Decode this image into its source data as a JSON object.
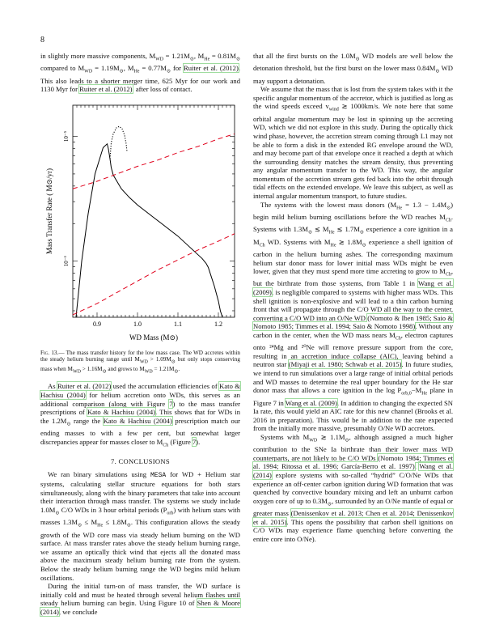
{
  "page": {
    "number": "8"
  },
  "left": {
    "intro_paragraph": [
      {
        "t": "in slightly more massive components, M"
      },
      {
        "t": "WD",
        "sub": true
      },
      {
        "t": " = 1.21M"
      },
      {
        "t": "⊙",
        "sub": true
      },
      {
        "t": ", M"
      },
      {
        "t": "He",
        "sub": true
      },
      {
        "t": " = 0.81M"
      },
      {
        "t": "⊙",
        "sub": true
      },
      {
        "t": " compared to M"
      },
      {
        "t": "WD",
        "sub": true
      },
      {
        "t": " = 1.19M"
      },
      {
        "t": "⊙",
        "sub": true
      },
      {
        "t": ", M"
      },
      {
        "t": "He",
        "sub": true
      },
      {
        "t": " = 0.77M"
      },
      {
        "t": "⊙",
        "sub": true
      },
      {
        "t": " for "
      },
      {
        "t": "Ruiter et al. (2012)",
        "cite": true
      },
      {
        "t": ". This also leads to a shorter merger time, 625 Myr for our work and 1130 Myr for "
      },
      {
        "t": "Ruiter et al. (2012)",
        "cite": true
      },
      {
        "t": ", after loss of contact."
      }
    ],
    "caption": [
      {
        "t": "Fig. 13.",
        "lbl": true
      },
      {
        "t": "— The mass transfer history for the low mass case. The WD accretes within the steady helium burning range until M"
      },
      {
        "t": "WD",
        "sub": true
      },
      {
        "t": " > 1.09M"
      },
      {
        "t": "⊙",
        "sub": true
      },
      {
        "t": " but only stops conserving mass when M"
      },
      {
        "t": "WD",
        "sub": true
      },
      {
        "t": " > 1.16M"
      },
      {
        "t": "⊙",
        "sub": true
      },
      {
        "t": " and grows to M"
      },
      {
        "t": "WD",
        "sub": true
      },
      {
        "t": " = 1.21M"
      },
      {
        "t": "⊙",
        "sub": true
      },
      {
        "t": "."
      }
    ],
    "para2": [
      {
        "t": "As "
      },
      {
        "t": "Ruiter et al. (2012)",
        "cite": true
      },
      {
        "t": " used the accumulation efficiencies of "
      },
      {
        "t": "Kato & Hachisu (2004)",
        "cite": true
      },
      {
        "t": " for helium accretion onto WDs, this serves as an additional comparison (along with Figure "
      },
      {
        "t": "7",
        "cite": true
      },
      {
        "t": ") to the mass transfer prescriptions of "
      },
      {
        "t": "Kato & Hachisu (2004)",
        "cite": true
      },
      {
        "t": ". This shows that for WDs in the 1.2M"
      },
      {
        "t": "⊙",
        "sub": true
      },
      {
        "t": " range the "
      },
      {
        "t": "Kato & Hachisu (2004)",
        "cite": true
      },
      {
        "t": " prescription match our ending masses to with a few per cent, but somewhat larger discrepancies appear for masses closer to M"
      },
      {
        "t": "Ch",
        "sub": true
      },
      {
        "t": " (Figure "
      },
      {
        "t": "7",
        "cite": true
      },
      {
        "t": ")."
      }
    ],
    "section_title": "7. CONCLUSIONS",
    "para3": [
      {
        "t": "We ran binary simulations using "
      },
      {
        "t": "MESA",
        "mono": true
      },
      {
        "t": " for WD + Helium star systems, calculating stellar structure equations for both stars simultaneously, along with the binary parameters that take into account their interaction through mass transfer. The systems we study include 1.0M"
      },
      {
        "t": "⊙",
        "sub": true
      },
      {
        "t": " C/O WDs in 3 hour orbital periods (P"
      },
      {
        "t": "orb",
        "sub": true
      },
      {
        "t": ") with helium stars with masses 1.3M"
      },
      {
        "t": "⊙",
        "sub": true
      },
      {
        "t": " ≤ M"
      },
      {
        "t": "He",
        "sub": true
      },
      {
        "t": " ≤ 1.8M"
      },
      {
        "t": "⊙",
        "sub": true
      },
      {
        "t": ". This configuration allows the steady growth of the WD core mass via steady helium burning on the WD surface. At mass transfer rates above the steady helium burning range, we assume an optically thick wind that ejects all the donated mass above the maximum steady helium burning rate from the system. Below the steady helium burning range the WD begins mild helium oscillations."
      }
    ],
    "para4": [
      {
        "t": "During the initial turn-on of mass transfer, the WD surface is initially cold and must be heated through several helium flashes until steady helium burning can begin. Using Figure 10 of "
      },
      {
        "t": "Shen & Moore (2014)",
        "cite": true
      },
      {
        "t": ", we conclude"
      }
    ]
  },
  "right": {
    "para1": [
      {
        "t": "that all the first bursts on the 1.0M"
      },
      {
        "t": "⊙",
        "sub": true
      },
      {
        "t": " WD models are well below the detonation threshold, but the first burst on the lower mass 0.84M"
      },
      {
        "t": "⊙",
        "sub": true
      },
      {
        "t": " WD may support a detonation."
      }
    ],
    "para2": [
      {
        "t": "We assume that the mass that is lost from the system takes with it the specific angular momentum of the accretor, which is justified as long as the wind speeds exceed v"
      },
      {
        "t": "wind",
        "sub": true
      },
      {
        "t": " ≳ 1000km/s. We note here that some orbital angular momentum may be lost in spinning up the accreting WD, which we did not explore in this study. During the optically thick wind phase, however, the accretion stream coming through L1 may not be able to form a disk in the extended RG envelope around the WD, and may become part of that envelope once it reached a depth at which the surrounding density matches the stream density, thus preventing any angular momentum transfer to the WD. This way, the angular momentum of the accretion stream gets fed back into the orbit through tidal effects on the extended envelope. We leave this subject, as well as internal angular momentum transport, to future studies."
      }
    ],
    "para3": [
      {
        "t": "The systems with the lowest mass donors (M"
      },
      {
        "t": "He",
        "sub": true
      },
      {
        "t": " = 1.3 − 1.4M"
      },
      {
        "t": "⊙",
        "sub": true
      },
      {
        "t": ") begin mild helium burning oscillations before the WD reaches M"
      },
      {
        "t": "Ch",
        "sub": true
      },
      {
        "t": ". Systems with 1.3M"
      },
      {
        "t": "⊙",
        "sub": true
      },
      {
        "t": " ≲ M"
      },
      {
        "t": "He",
        "sub": true
      },
      {
        "t": " ≲ 1.7M"
      },
      {
        "t": "⊙",
        "sub": true
      },
      {
        "t": " experience a core ignition in a M"
      },
      {
        "t": "Ch",
        "sub": true
      },
      {
        "t": " WD. Systems with M"
      },
      {
        "t": "He",
        "sub": true
      },
      {
        "t": " ≳ 1.8M"
      },
      {
        "t": "⊙",
        "sub": true
      },
      {
        "t": " experience a shell ignition of carbon in the helium burning ashes. The corresponding maximum helium star donor mass for lower initial mass WDs might be even lower, given that they must spend more time accreting to grow to M"
      },
      {
        "t": "Ch",
        "sub": true
      },
      {
        "t": ", but the birthrate from those systems, from Table 1 in "
      },
      {
        "t": "Wang et al. (2009)",
        "cite": true
      },
      {
        "t": ", is negligible compared to systems with higher mass WDs. This shell ignition is non-explosive and will lead to a thin carbon burning front that will propagate through the C/O WD all the way to the center, converting a C/O WD into an O/Ne WD "
      },
      {
        "t": "(Nomoto & Iben 1985; Saio & Nomoto 1985; Timmes et al. 1994; Saio & Nomoto 1998)",
        "cite": true
      },
      {
        "t": ". Without any carbon in the center, when the WD mass nears M"
      },
      {
        "t": "Ch",
        "sub": true
      },
      {
        "t": ", electron captures onto ²⁴Mg and ²⁰Ne will remove pressure support from the core, resulting in an accretion induce collapse (AIC), leaving behind a neutron star "
      },
      {
        "t": "(Miyaji et al. 1980; Schwab et al. 2015)",
        "cite": true
      },
      {
        "t": ". In future studies, we intend to run simulations over a large range of initial orbital periods and WD masses to determine the real upper boundary for the He star donor mass that allows a core ignition in the log P"
      },
      {
        "t": "orb,0",
        "sub": true
      },
      {
        "t": "−M"
      },
      {
        "t": "He",
        "sub": true
      },
      {
        "t": " plane in Figure 7 in "
      },
      {
        "t": "Wang et al. (2009)",
        "cite": true
      },
      {
        "t": ". In addition to changing the expected SN Ia rate, this would yield an AIC rate for this new channel (Brooks et al. 2016 in preparation). This would be in addition to the rate expected from the initially more massive, presumably O/Ne WD accretors."
      }
    ],
    "para4": [
      {
        "t": "Systems with M"
      },
      {
        "t": "WD",
        "sub": true
      },
      {
        "t": " ≳ 1.1M"
      },
      {
        "t": "⊙",
        "sub": true
      },
      {
        "t": ", although assigned a much higher contribution to the SNe Ia birthrate than their lower mass WD counterparts, are not likely to be C/O WDs "
      },
      {
        "t": "(Nomoto 1984; Timmes et al. 1994; Ritossa et al. 1996; García-Berro et al. 1997)",
        "cite": true
      },
      {
        "t": ". "
      },
      {
        "t": "Wang et al. (2014)",
        "cite": true
      },
      {
        "t": " explore systems with so-called “hydrid” C/O/Ne WDs that experience an off-center carbon ignition during WD formation that was quenched by convective boundary mixing and left an unburnt carbon oxygen core of up to 0.3M"
      },
      {
        "t": "⊙",
        "sub": true
      },
      {
        "t": ", surrounded by an O/Ne mantle of equal or greater mass "
      },
      {
        "t": "(Denissenkov et al. 2013; Chen et al. 2014; Denissenkov et al. 2015)",
        "cite": true
      },
      {
        "t": ". This opens the possibility that carbon shell ignitions on C/O WDs may experience flame quenching before converting the entire core into O/Ne)."
      }
    ]
  },
  "figure": {
    "ylabel": "Mass Transfer Rate ( M⊙/yr)",
    "xlabel": "WD Mass (M⊙)",
    "ytick_labels": [
      "10⁻⁵",
      "10⁻⁶"
    ]
  },
  "chart_data": {
    "type": "line",
    "xlabel": "WD Mass (M⊙)",
    "ylabel": "Mass Transfer Rate ( M⊙/yr)",
    "xlim": [
      0.84,
      1.24
    ],
    "ylim_log10": [
      -6.45,
      -4.75
    ],
    "log_y": true,
    "x_ticks": [
      0.9,
      1.0,
      1.1,
      1.2
    ],
    "x_tick_labels": [
      "0.9",
      "1.0",
      "1.1",
      "1.2"
    ],
    "y_ticks_log10": [
      -5,
      -6
    ],
    "grid": false,
    "series": [
      {
        "style": "solid-black",
        "x": [
          0.848,
          0.862,
          0.878,
          0.895,
          0.915,
          0.925,
          0.928,
          0.932,
          0.935,
          0.94,
          0.96,
          0.98,
          1.0,
          1.02,
          1.04,
          1.06,
          1.08,
          1.1,
          1.12,
          1.14,
          1.16,
          1.17,
          1.175,
          1.18,
          1.19,
          1.2,
          1.205,
          1.21
        ],
        "log10y": [
          -6.45,
          -6.0,
          -5.62,
          -5.3,
          -5.09,
          -5.06,
          -5.1,
          -5.18,
          -5.25,
          -5.31,
          -5.42,
          -5.49,
          -5.55,
          -5.6,
          -5.65,
          -5.7,
          -5.75,
          -5.8,
          -5.86,
          -5.92,
          -5.98,
          -6.02,
          -6.05,
          -6.1,
          -6.2,
          -6.32,
          -6.4,
          -6.45
        ]
      },
      {
        "style": "dotted-black",
        "x": [
          0.932,
          0.935,
          0.94,
          0.948,
          0.955,
          0.962,
          0.968,
          0.972,
          0.974
        ],
        "log10y": [
          -5.18,
          -5.05,
          -4.98,
          -4.93,
          -4.92,
          -4.94,
          -4.99,
          -5.06,
          -5.12
        ]
      },
      {
        "style": "dashed-red",
        "x": [
          0.84,
          0.9,
          0.95,
          1.0,
          1.05,
          1.1,
          1.15,
          1.2,
          1.24
        ],
        "log10y": [
          -5.42,
          -5.36,
          -5.3,
          -5.24,
          -5.19,
          -5.13,
          -5.08,
          -5.02,
          -4.98
        ]
      },
      {
        "style": "dashed-red",
        "x": [
          0.84,
          0.9,
          0.95,
          1.0,
          1.05,
          1.1,
          1.15,
          1.2,
          1.24
        ],
        "log10y": [
          -6.43,
          -6.34,
          -6.25,
          -6.16,
          -6.07,
          -5.99,
          -5.91,
          -5.84,
          -5.78
        ]
      }
    ]
  }
}
